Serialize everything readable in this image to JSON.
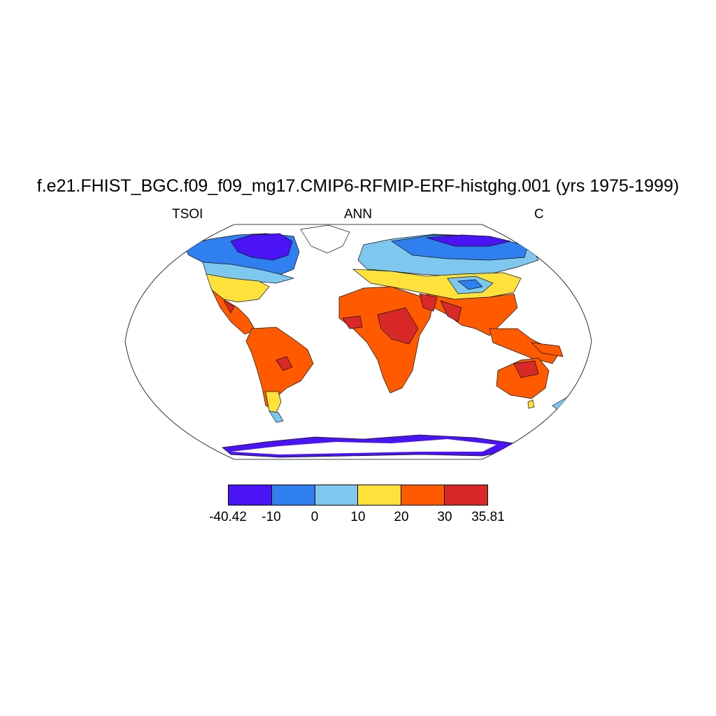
{
  "title": "f.e21.FHIST_BGC.f09_f09_mg17.CMIP6-RFMIP-ERF-histghg.001 (yrs 1975-1999)",
  "left_label": "TSOI",
  "center_label": "ANN",
  "right_label": "C",
  "colorbar": {
    "colors": [
      "#4a14f5",
      "#2f7ff0",
      "#7ec8f0",
      "#ffe13b",
      "#ff5a00",
      "#d82828"
    ],
    "tick_labels": [
      "-40.42",
      "-10",
      "0",
      "10",
      "20",
      "30",
      "35.81"
    ]
  }
}
